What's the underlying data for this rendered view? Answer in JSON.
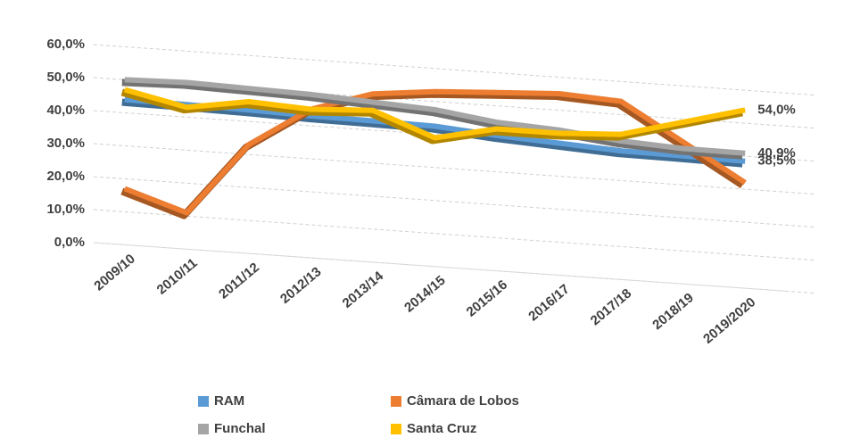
{
  "chart_data": {
    "type": "line",
    "categories": [
      "2009/10",
      "2010/11",
      "2011/12",
      "2012/13",
      "2013/14",
      "2014/15",
      "2015/16",
      "2016/17",
      "2017/18",
      "2018/19",
      "2019/2020"
    ],
    "series": [
      {
        "name": "RAM",
        "color": "#5b9bd5",
        "values": [
          44.0,
          43.8,
          43.5,
          43.0,
          42.8,
          42.5,
          41.0,
          40.0,
          39.0,
          38.8,
          38.5
        ],
        "value_labels": [
          null,
          null,
          null,
          null,
          null,
          null,
          null,
          null,
          null,
          null,
          "38,5%"
        ]
      },
      {
        "name": "Câmara de Lobos",
        "color": "#ed7d31",
        "values": [
          17,
          11,
          33,
          45,
          51,
          53,
          54,
          55,
          54,
          43,
          32
        ]
      },
      {
        "name": "Funchal",
        "color": "#a5a5a5",
        "values": [
          50.0,
          50.5,
          50.0,
          49.5,
          48.5,
          47.5,
          45.0,
          44.0,
          42.0,
          41.0,
          40.9
        ],
        "value_labels": [
          null,
          null,
          null,
          null,
          null,
          null,
          null,
          null,
          null,
          null,
          "40,9%"
        ]
      },
      {
        "name": "Santa Cruz",
        "color": "#ffc000",
        "values": [
          47,
          43,
          46,
          45,
          46,
          39,
          43,
          43,
          44,
          49,
          54.0
        ],
        "value_labels": [
          null,
          null,
          null,
          null,
          null,
          null,
          null,
          null,
          null,
          null,
          "54,0%"
        ]
      }
    ],
    "ylim": [
      0,
      60
    ],
    "yticks": [
      {
        "value": 0,
        "label": "0,0%"
      },
      {
        "value": 10,
        "label": "10,0%"
      },
      {
        "value": 20,
        "label": "20,0%"
      },
      {
        "value": 30,
        "label": "30,0%"
      },
      {
        "value": 40,
        "label": "40,0%"
      },
      {
        "value": 50,
        "label": "50,0%"
      },
      {
        "value": 60,
        "label": "60,0%"
      }
    ],
    "grid": true
  }
}
